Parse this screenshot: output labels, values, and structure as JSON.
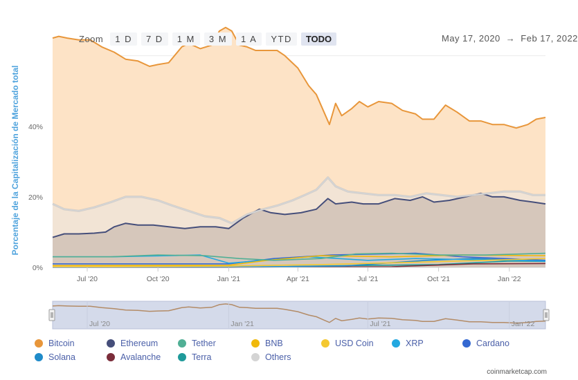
{
  "zoom": {
    "label": "Zoom",
    "buttons": [
      "1 D",
      "7 D",
      "1 M",
      "3 M",
      "1 A",
      "YTD",
      "TODO"
    ],
    "active": "TODO"
  },
  "range": {
    "start": "May 17, 2020",
    "arrow": "→",
    "end": "Feb 17, 2022"
  },
  "credit": "coinmarketcap.com",
  "chart_data": {
    "type": "area",
    "ylabel": "Porcentaje de la Capitalización de Mercado total",
    "y_ticks": [
      "0%",
      "20%",
      "40%"
    ],
    "ylim": [
      0,
      0.66
    ],
    "x_ticks": [
      "Jul '20",
      "Oct '20",
      "Jan '21",
      "Apr '21",
      "Jul '21",
      "Oct '21",
      "Jan '22"
    ],
    "x_tick_dates": [
      "2020-07-01",
      "2020-10-01",
      "2021-01-01",
      "2021-04-01",
      "2021-07-01",
      "2021-10-01",
      "2022-01-01"
    ],
    "xlim": [
      "2020-05-17",
      "2022-02-17"
    ],
    "grid": true,
    "legend_placement": "bottom",
    "series": [
      {
        "name": "Bitcoin",
        "color": "#e8963a",
        "fill": "#fde3c6",
        "points": [
          [
            "2020-05-17",
            0.65
          ],
          [
            "2020-05-25",
            0.655
          ],
          [
            "2020-06-05",
            0.65
          ],
          [
            "2020-06-20",
            0.645
          ],
          [
            "2020-07-05",
            0.645
          ],
          [
            "2020-07-20",
            0.625
          ],
          [
            "2020-08-05",
            0.61
          ],
          [
            "2020-08-20",
            0.59
          ],
          [
            "2020-09-05",
            0.585
          ],
          [
            "2020-09-20",
            0.57
          ],
          [
            "2020-10-01",
            0.575
          ],
          [
            "2020-10-15",
            0.58
          ],
          [
            "2020-11-01",
            0.625
          ],
          [
            "2020-11-10",
            0.635
          ],
          [
            "2020-11-25",
            0.62
          ],
          [
            "2020-12-10",
            0.63
          ],
          [
            "2020-12-20",
            0.67
          ],
          [
            "2020-12-28",
            0.68
          ],
          [
            "2021-01-05",
            0.67
          ],
          [
            "2021-01-15",
            0.63
          ],
          [
            "2021-01-25",
            0.625
          ],
          [
            "2021-02-05",
            0.615
          ],
          [
            "2021-02-20",
            0.615
          ],
          [
            "2021-03-05",
            0.615
          ],
          [
            "2021-03-15",
            0.6
          ],
          [
            "2021-04-01",
            0.565
          ],
          [
            "2021-04-15",
            0.515
          ],
          [
            "2021-04-25",
            0.49
          ],
          [
            "2021-05-05",
            0.44
          ],
          [
            "2021-05-12",
            0.405
          ],
          [
            "2021-05-20",
            0.465
          ],
          [
            "2021-05-28",
            0.43
          ],
          [
            "2021-06-10",
            0.45
          ],
          [
            "2021-06-20",
            0.47
          ],
          [
            "2021-07-01",
            0.455
          ],
          [
            "2021-07-15",
            0.47
          ],
          [
            "2021-08-01",
            0.465
          ],
          [
            "2021-08-15",
            0.445
          ],
          [
            "2021-09-01",
            0.435
          ],
          [
            "2021-09-10",
            0.42
          ],
          [
            "2021-09-25",
            0.42
          ],
          [
            "2021-10-10",
            0.46
          ],
          [
            "2021-10-25",
            0.44
          ],
          [
            "2021-11-10",
            0.415
          ],
          [
            "2021-11-25",
            0.415
          ],
          [
            "2021-12-10",
            0.405
          ],
          [
            "2021-12-25",
            0.405
          ],
          [
            "2022-01-10",
            0.395
          ],
          [
            "2022-01-25",
            0.405
          ],
          [
            "2022-02-05",
            0.42
          ],
          [
            "2022-02-17",
            0.425
          ]
        ]
      },
      {
        "name": "Others",
        "color": "#d4d4d4",
        "fill": "#f2e4d5",
        "points": [
          [
            "2020-05-17",
            0.18
          ],
          [
            "2020-06-01",
            0.165
          ],
          [
            "2020-06-20",
            0.16
          ],
          [
            "2020-07-10",
            0.17
          ],
          [
            "2020-08-01",
            0.185
          ],
          [
            "2020-08-20",
            0.2
          ],
          [
            "2020-09-10",
            0.2
          ],
          [
            "2020-10-01",
            0.19
          ],
          [
            "2020-10-20",
            0.175
          ],
          [
            "2020-11-10",
            0.16
          ],
          [
            "2020-12-01",
            0.145
          ],
          [
            "2020-12-20",
            0.14
          ],
          [
            "2021-01-05",
            0.125
          ],
          [
            "2021-01-25",
            0.15
          ],
          [
            "2021-02-15",
            0.165
          ],
          [
            "2021-03-05",
            0.175
          ],
          [
            "2021-03-25",
            0.19
          ],
          [
            "2021-04-10",
            0.205
          ],
          [
            "2021-04-25",
            0.22
          ],
          [
            "2021-05-10",
            0.255
          ],
          [
            "2021-05-20",
            0.23
          ],
          [
            "2021-06-05",
            0.215
          ],
          [
            "2021-06-25",
            0.21
          ],
          [
            "2021-07-15",
            0.205
          ],
          [
            "2021-08-05",
            0.205
          ],
          [
            "2021-08-25",
            0.2
          ],
          [
            "2021-09-15",
            0.21
          ],
          [
            "2021-10-05",
            0.205
          ],
          [
            "2021-10-25",
            0.2
          ],
          [
            "2021-11-15",
            0.205
          ],
          [
            "2021-12-05",
            0.21
          ],
          [
            "2021-12-25",
            0.215
          ],
          [
            "2022-01-15",
            0.215
          ],
          [
            "2022-02-01",
            0.205
          ],
          [
            "2022-02-17",
            0.205
          ]
        ]
      },
      {
        "name": "Ethereum",
        "color": "#454e7a",
        "fill": "#d6c7bb",
        "points": [
          [
            "2020-05-17",
            0.085
          ],
          [
            "2020-06-01",
            0.095
          ],
          [
            "2020-06-20",
            0.095
          ],
          [
            "2020-07-10",
            0.097
          ],
          [
            "2020-07-25",
            0.1
          ],
          [
            "2020-08-05",
            0.115
          ],
          [
            "2020-08-20",
            0.125
          ],
          [
            "2020-09-05",
            0.12
          ],
          [
            "2020-09-25",
            0.12
          ],
          [
            "2020-10-15",
            0.115
          ],
          [
            "2020-11-05",
            0.11
          ],
          [
            "2020-11-25",
            0.115
          ],
          [
            "2020-12-15",
            0.115
          ],
          [
            "2021-01-01",
            0.11
          ],
          [
            "2021-01-20",
            0.14
          ],
          [
            "2021-02-10",
            0.165
          ],
          [
            "2021-02-25",
            0.155
          ],
          [
            "2021-03-15",
            0.15
          ],
          [
            "2021-04-05",
            0.155
          ],
          [
            "2021-04-25",
            0.165
          ],
          [
            "2021-05-10",
            0.195
          ],
          [
            "2021-05-20",
            0.18
          ],
          [
            "2021-06-10",
            0.185
          ],
          [
            "2021-06-25",
            0.18
          ],
          [
            "2021-07-15",
            0.18
          ],
          [
            "2021-08-05",
            0.195
          ],
          [
            "2021-08-25",
            0.19
          ],
          [
            "2021-09-10",
            0.2
          ],
          [
            "2021-09-25",
            0.185
          ],
          [
            "2021-10-15",
            0.19
          ],
          [
            "2021-11-05",
            0.2
          ],
          [
            "2021-11-25",
            0.21
          ],
          [
            "2021-12-10",
            0.2
          ],
          [
            "2021-12-25",
            0.2
          ],
          [
            "2022-01-15",
            0.19
          ],
          [
            "2022-02-01",
            0.185
          ],
          [
            "2022-02-17",
            0.18
          ]
        ]
      },
      {
        "name": "Tether",
        "color": "#50af95",
        "points": [
          [
            "2020-05-17",
            0.03
          ],
          [
            "2020-08-01",
            0.03
          ],
          [
            "2020-10-01",
            0.035
          ],
          [
            "2020-12-01",
            0.033
          ],
          [
            "2021-01-15",
            0.025
          ],
          [
            "2021-03-01",
            0.02
          ],
          [
            "2021-05-01",
            0.025
          ],
          [
            "2021-06-15",
            0.038
          ],
          [
            "2021-08-01",
            0.04
          ],
          [
            "2021-10-01",
            0.035
          ],
          [
            "2021-12-01",
            0.035
          ],
          [
            "2022-02-17",
            0.04
          ]
        ]
      },
      {
        "name": "BNB",
        "color": "#f0b90b",
        "points": [
          [
            "2020-05-17",
            0.005
          ],
          [
            "2021-01-01",
            0.006
          ],
          [
            "2021-02-20",
            0.02
          ],
          [
            "2021-05-01",
            0.033
          ],
          [
            "2021-08-01",
            0.03
          ],
          [
            "2021-11-01",
            0.035
          ],
          [
            "2022-02-17",
            0.033
          ]
        ]
      },
      {
        "name": "USD Coin",
        "color": "#f4c830",
        "points": [
          [
            "2020-05-17",
            0.002
          ],
          [
            "2021-01-01",
            0.004
          ],
          [
            "2021-05-01",
            0.008
          ],
          [
            "2021-08-01",
            0.013
          ],
          [
            "2021-12-01",
            0.02
          ],
          [
            "2022-02-17",
            0.025
          ]
        ]
      },
      {
        "name": "XRP",
        "color": "#23a8e0",
        "points": [
          [
            "2020-05-17",
            0.03
          ],
          [
            "2020-08-01",
            0.03
          ],
          [
            "2020-11-25",
            0.035
          ],
          [
            "2021-01-01",
            0.012
          ],
          [
            "2021-04-15",
            0.03
          ],
          [
            "2021-07-01",
            0.02
          ],
          [
            "2021-09-01",
            0.025
          ],
          [
            "2022-02-17",
            0.018
          ]
        ]
      },
      {
        "name": "Cardano",
        "color": "#3468d1",
        "points": [
          [
            "2020-05-17",
            0.01
          ],
          [
            "2021-01-01",
            0.01
          ],
          [
            "2021-03-01",
            0.025
          ],
          [
            "2021-05-15",
            0.035
          ],
          [
            "2021-09-01",
            0.04
          ],
          [
            "2021-11-01",
            0.03
          ],
          [
            "2022-02-17",
            0.02
          ]
        ]
      },
      {
        "name": "Solana",
        "color": "#1f8bc9",
        "points": [
          [
            "2020-05-17",
            0.0
          ],
          [
            "2021-01-01",
            0.001
          ],
          [
            "2021-06-01",
            0.004
          ],
          [
            "2021-09-15",
            0.02
          ],
          [
            "2021-11-15",
            0.025
          ],
          [
            "2022-02-17",
            0.017
          ]
        ]
      },
      {
        "name": "Avalanche",
        "color": "#7b2d3a",
        "points": [
          [
            "2020-05-17",
            0.0
          ],
          [
            "2021-01-01",
            0.0
          ],
          [
            "2021-08-01",
            0.002
          ],
          [
            "2021-11-15",
            0.01
          ],
          [
            "2022-02-17",
            0.011
          ]
        ]
      },
      {
        "name": "Terra",
        "color": "#1f9a9a",
        "points": [
          [
            "2020-05-17",
            0.0
          ],
          [
            "2021-01-01",
            0.0
          ],
          [
            "2021-05-01",
            0.004
          ],
          [
            "2021-10-01",
            0.008
          ],
          [
            "2022-01-01",
            0.018
          ],
          [
            "2022-02-17",
            0.017
          ]
        ]
      }
    ],
    "navigator": {
      "x_ticks": [
        "Jul '20",
        "Jan '21",
        "Jul '21",
        "Jan '22"
      ],
      "x_tick_dates": [
        "2020-07-01",
        "2021-01-01",
        "2021-07-01",
        "2022-01-01"
      ]
    }
  },
  "legend": [
    {
      "name": "Bitcoin",
      "color": "#e8963a"
    },
    {
      "name": "Ethereum",
      "color": "#454e7a"
    },
    {
      "name": "Tether",
      "color": "#50af95"
    },
    {
      "name": "BNB",
      "color": "#f0b90b"
    },
    {
      "name": "USD Coin",
      "color": "#f4c830"
    },
    {
      "name": "XRP",
      "color": "#23a8e0"
    },
    {
      "name": "Cardano",
      "color": "#3468d1"
    },
    {
      "name": "Solana",
      "color": "#1f8bc9"
    },
    {
      "name": "Avalanche",
      "color": "#7b2d3a"
    },
    {
      "name": "Terra",
      "color": "#1f9a9a"
    },
    {
      "name": "Others",
      "color": "#d4d4d4"
    }
  ]
}
